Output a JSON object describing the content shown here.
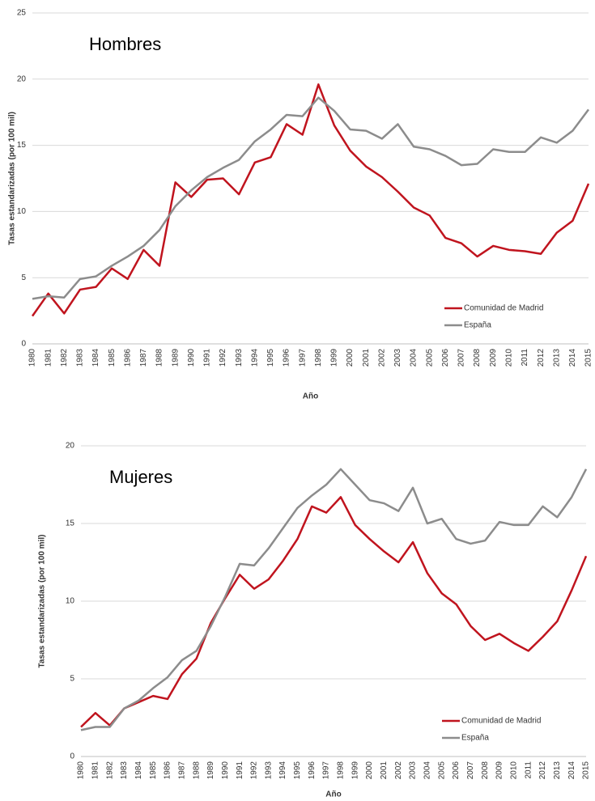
{
  "chart_data": [
    {
      "type": "line",
      "title": "Hombres",
      "ylabel": "Tasas estandarizadas (por 100 mil)",
      "xlabel": "Año",
      "categories": [
        "1980",
        "1981",
        "1982",
        "1983",
        "1984",
        "1985",
        "1986",
        "1987",
        "1988",
        "1989",
        "1990",
        "1991",
        "1992",
        "1993",
        "1994",
        "1995",
        "1996",
        "1997",
        "1998",
        "1999",
        "2000",
        "2001",
        "2002",
        "2003",
        "2004",
        "2005",
        "2006",
        "2007",
        "2008",
        "2009",
        "2010",
        "2011",
        "2012",
        "2013",
        "2014",
        "2015"
      ],
      "series": [
        {
          "name": "Comunidad de Madrid",
          "color": "#c0141e",
          "values": [
            2.1,
            3.8,
            2.3,
            4.1,
            4.3,
            5.7,
            4.9,
            7.1,
            5.9,
            12.2,
            11.1,
            12.4,
            12.5,
            11.3,
            13.7,
            14.1,
            16.6,
            15.8,
            19.6,
            16.5,
            14.6,
            13.4,
            12.6,
            11.5,
            10.3,
            9.7,
            8.0,
            7.6,
            6.6,
            7.4,
            7.1,
            7.0,
            6.8,
            8.4,
            9.3,
            12.1
          ]
        },
        {
          "name": "España",
          "color": "#8c8c8c",
          "values": [
            3.4,
            3.6,
            3.5,
            4.9,
            5.1,
            5.9,
            6.6,
            7.4,
            8.6,
            10.4,
            11.6,
            12.6,
            13.3,
            13.9,
            15.3,
            16.2,
            17.3,
            17.2,
            18.6,
            17.6,
            16.2,
            16.1,
            15.5,
            16.6,
            14.9,
            14.7,
            14.2,
            13.5,
            13.6,
            14.7,
            14.5,
            14.5,
            15.6,
            15.2,
            16.1,
            17.7
          ]
        }
      ],
      "ylim": [
        0,
        25
      ],
      "yticks": [
        0,
        5,
        10,
        15,
        20,
        25
      ],
      "grid": true,
      "legend": "lower right"
    },
    {
      "type": "line",
      "title": "Mujeres",
      "ylabel": "Tasas estandarizadas (por 100 mil)",
      "xlabel": "Año",
      "categories": [
        "1980",
        "1981",
        "1982",
        "1983",
        "1984",
        "1985",
        "1986",
        "1987",
        "1988",
        "1989",
        "1990",
        "1991",
        "1992",
        "1993",
        "1994",
        "1995",
        "1996",
        "1997",
        "1998",
        "1999",
        "2000",
        "2001",
        "2002",
        "2003",
        "2004",
        "2005",
        "2006",
        "2007",
        "2008",
        "2009",
        "2010",
        "2011",
        "2012",
        "2013",
        "2014",
        "2015"
      ],
      "series": [
        {
          "name": "Comunidad de Madrid",
          "color": "#c0141e",
          "values": [
            1.9,
            2.8,
            2.0,
            3.1,
            3.5,
            3.9,
            3.7,
            5.3,
            6.3,
            8.6,
            10.2,
            11.7,
            10.8,
            11.4,
            12.6,
            14.0,
            16.1,
            15.7,
            16.7,
            14.9,
            14.0,
            13.2,
            12.5,
            13.8,
            11.8,
            10.5,
            9.8,
            8.4,
            7.5,
            7.9,
            7.3,
            6.8,
            7.7,
            8.7,
            10.7,
            12.9
          ]
        },
        {
          "name": "España",
          "color": "#8c8c8c",
          "values": [
            1.7,
            1.9,
            1.9,
            3.1,
            3.6,
            4.4,
            5.1,
            6.2,
            6.8,
            8.4,
            10.3,
            12.4,
            12.3,
            13.4,
            14.7,
            16.0,
            16.8,
            17.5,
            18.5,
            17.5,
            16.5,
            16.3,
            15.8,
            17.3,
            15.0,
            15.3,
            14.0,
            13.7,
            13.9,
            15.1,
            14.9,
            14.9,
            16.1,
            15.4,
            16.7,
            18.5
          ]
        }
      ],
      "ylim": [
        0,
        20
      ],
      "yticks": [
        0,
        5,
        10,
        15,
        20
      ],
      "grid": true,
      "legend": "lower right"
    }
  ]
}
